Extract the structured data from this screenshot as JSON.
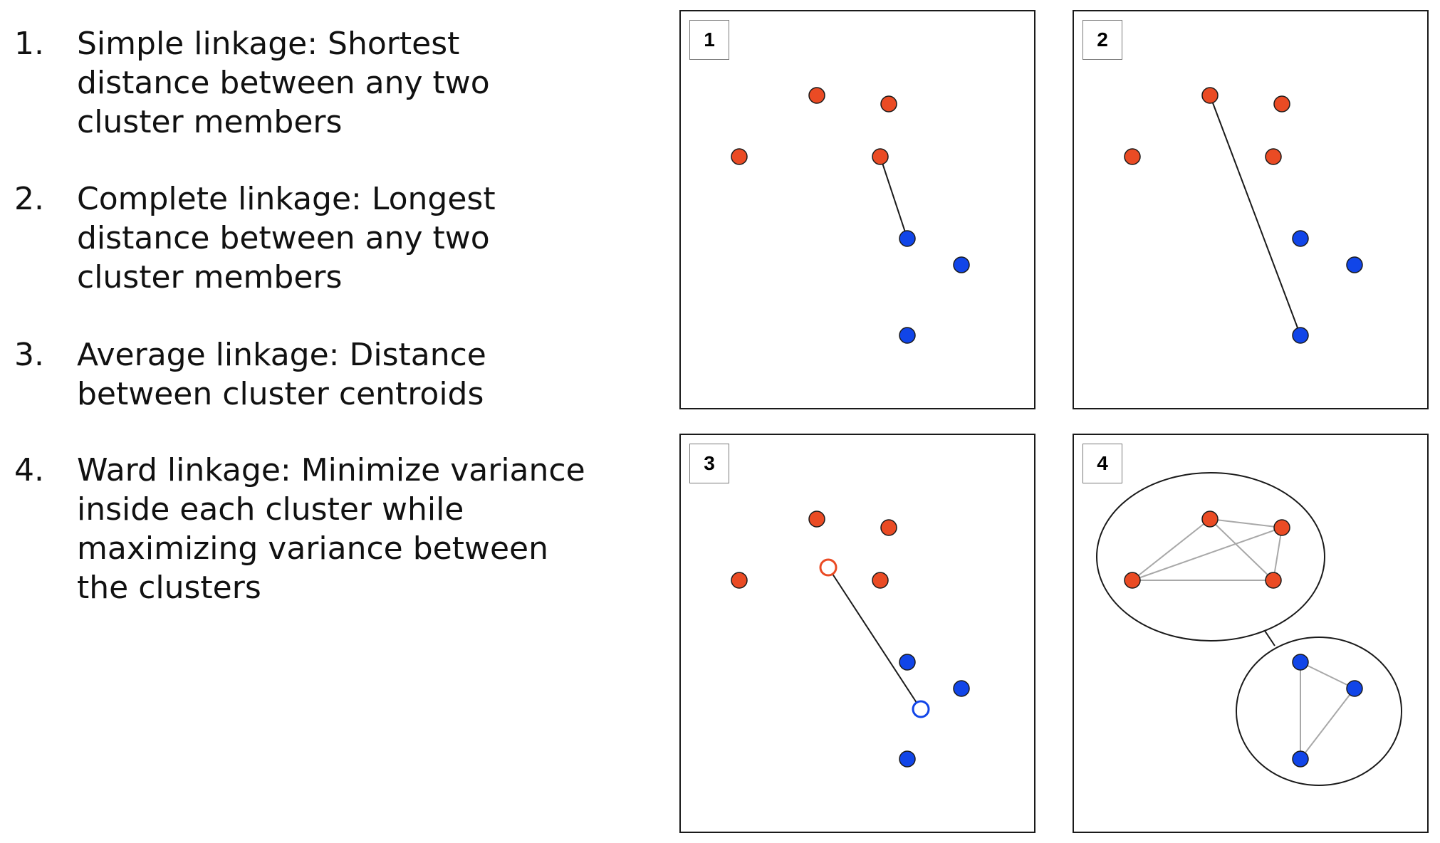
{
  "methods": [
    {
      "number": "1.",
      "lines": [
        "Simple linkage: Shortest",
        "distance between any two",
        "cluster members"
      ]
    },
    {
      "number": "2.",
      "lines": [
        "Complete linkage: Longest",
        "distance between any two",
        "cluster members"
      ]
    },
    {
      "number": "3.",
      "lines": [
        "Average linkage: Distance",
        "between cluster centroids"
      ]
    },
    {
      "number": "4.",
      "lines": [
        "Ward linkage: Minimize variance",
        "inside each cluster while",
        "maximizing variance between",
        "the clusters"
      ]
    }
  ],
  "panels": [
    {
      "label": "1"
    },
    {
      "label": "2"
    },
    {
      "label": "3"
    },
    {
      "label": "4"
    }
  ],
  "colors": {
    "cluster_a": "#ea4b24",
    "cluster_b": "#1145e8",
    "link": "#1a1a1a",
    "ward_edge": "#a8a8a8"
  }
}
